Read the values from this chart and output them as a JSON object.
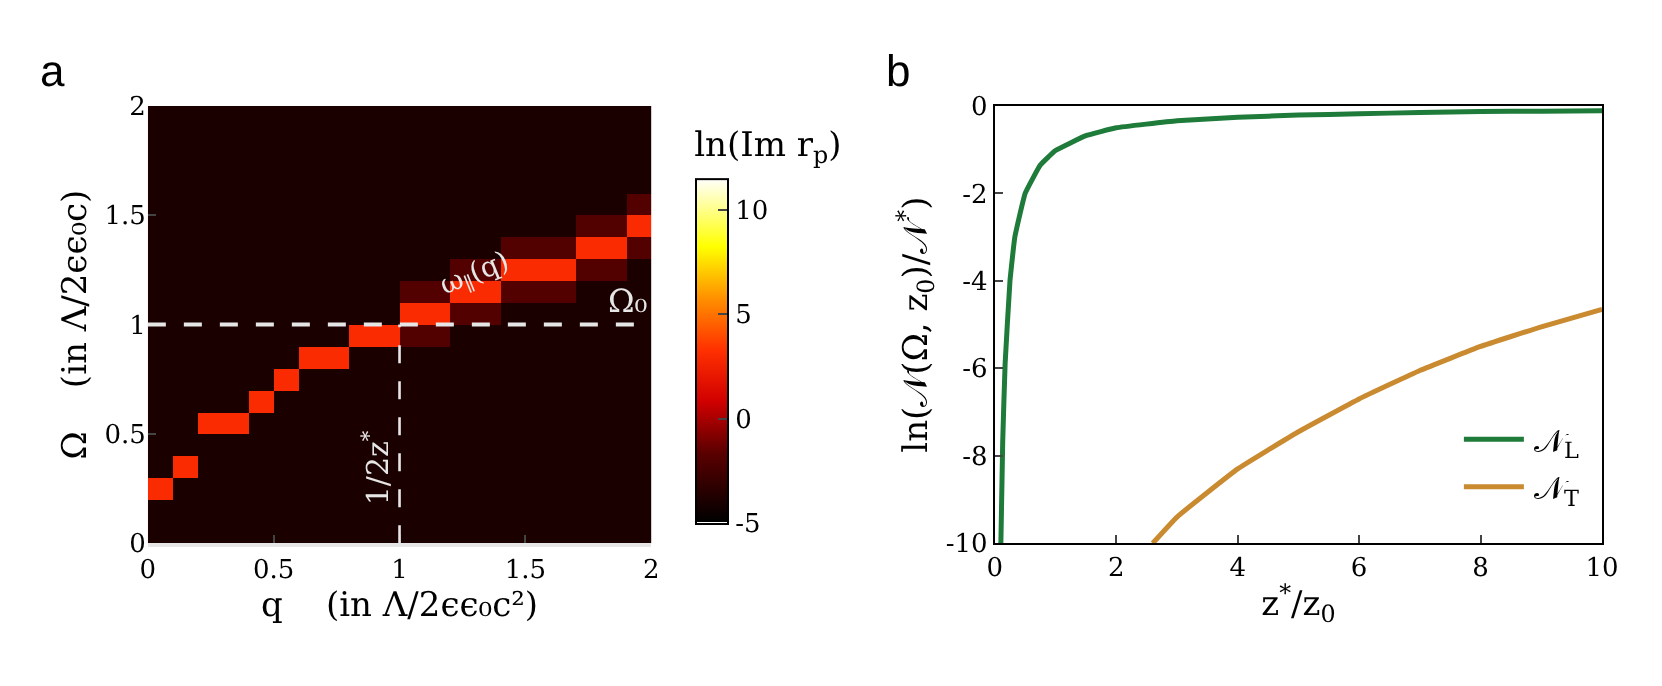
{
  "chart_data": [
    {
      "type": "heatmap",
      "title": "a",
      "xlabel": "q    (in Λ/2ϵϵ₀c²)",
      "ylabel": "Ω    (in Λ/2ϵϵ₀c)",
      "clabel": "ln(Im r$_{p}$)",
      "xlim": [
        0,
        2
      ],
      "ylim": [
        0,
        2
      ],
      "xticks": [
        0,
        0.5,
        1,
        1.5,
        2
      ],
      "yticks": [
        0,
        0.5,
        1,
        1.5,
        2
      ],
      "clim": [
        -5,
        11.5
      ],
      "cticks": [
        -5,
        0,
        5,
        10
      ],
      "cells": [
        [
          -4,
          -4,
          -4,
          -4,
          -4,
          -4,
          -4,
          -4,
          -4,
          -4,
          -4,
          -4,
          -4,
          -4,
          -4,
          -4,
          -4,
          -4,
          -4,
          -4
        ],
        [
          -4,
          -4,
          -4,
          -4,
          -4,
          -4,
          -4,
          -4,
          -4,
          -4,
          -4,
          -4,
          -4,
          -4,
          -4,
          -4,
          -4,
          -4,
          -4,
          -4
        ],
        [
          -4,
          -4,
          -4,
          -4,
          -4,
          -4,
          -4,
          -4,
          -4,
          -4,
          -4,
          -4,
          -4,
          -4,
          -4,
          -4,
          -4,
          -4,
          -4,
          -4
        ],
        [
          -4,
          -4,
          -4,
          -4,
          -4,
          -4,
          -4,
          -4,
          -4,
          -4,
          -4,
          -4,
          -4,
          -4,
          -4,
          -4,
          -4,
          -4,
          -4,
          -4
        ],
        [
          -4,
          -4,
          -4,
          -4,
          -4,
          -4,
          -4,
          -4,
          -4,
          -4,
          -4,
          -4,
          -4,
          -4,
          -4,
          -4,
          -4,
          -4,
          -4,
          -2
        ],
        [
          -4,
          -4,
          -4,
          -4,
          -4,
          -4,
          -4,
          -4,
          -4,
          -4,
          -4,
          -4,
          -4,
          -4,
          -4,
          -4,
          -4,
          -2,
          -2,
          3
        ],
        [
          -4,
          -4,
          -4,
          -4,
          -4,
          -4,
          -4,
          -4,
          -4,
          -4,
          -4,
          -4,
          -4,
          -4,
          -2,
          -2,
          -2,
          3,
          3,
          -2
        ],
        [
          -4,
          -4,
          -4,
          -4,
          -4,
          -4,
          -4,
          -4,
          -4,
          -4,
          -4,
          -4,
          -2,
          -2,
          3,
          3,
          3,
          -2,
          -2,
          -4
        ],
        [
          -4,
          -4,
          -4,
          -4,
          -4,
          -4,
          -4,
          -4,
          -4,
          -4,
          -2,
          -2,
          3,
          3,
          -2,
          -2,
          -2,
          -4,
          -4,
          -4
        ],
        [
          -4,
          -4,
          -4,
          -4,
          -4,
          -4,
          -4,
          -4,
          -4,
          -4,
          3,
          3,
          -2,
          -2,
          -4,
          -4,
          -4,
          -4,
          -4,
          -4
        ],
        [
          -4,
          -4,
          -4,
          -4,
          -4,
          -4,
          -4,
          -4,
          3,
          3,
          -2,
          -2,
          -4,
          -4,
          -4,
          -4,
          -4,
          -4,
          -4,
          -4
        ],
        [
          -4,
          -4,
          -4,
          -4,
          -4,
          -4,
          3,
          3,
          -4,
          -4,
          -4,
          -4,
          -4,
          -4,
          -4,
          -4,
          -4,
          -4,
          -4,
          -4
        ],
        [
          -4,
          -4,
          -4,
          -4,
          -4,
          3,
          -4,
          -4,
          -4,
          -4,
          -4,
          -4,
          -4,
          -4,
          -4,
          -4,
          -4,
          -4,
          -4,
          -4
        ],
        [
          -4,
          -4,
          -4,
          -4,
          3,
          -4,
          -4,
          -4,
          -4,
          -4,
          -4,
          -4,
          -4,
          -4,
          -4,
          -4,
          -4,
          -4,
          -4,
          -4
        ],
        [
          -4,
          -4,
          3,
          3,
          -4,
          -4,
          -4,
          -4,
          -4,
          -4,
          -4,
          -4,
          -4,
          -4,
          -4,
          -4,
          -4,
          -4,
          -4,
          -4
        ],
        [
          -4,
          -4,
          -4,
          -4,
          -4,
          -4,
          -4,
          -4,
          -4,
          -4,
          -4,
          -4,
          -4,
          -4,
          -4,
          -4,
          -4,
          -4,
          -4,
          -4
        ],
        [
          -4,
          3,
          -4,
          -4,
          -4,
          -4,
          -4,
          -4,
          -4,
          -4,
          -4,
          -4,
          -4,
          -4,
          -4,
          -4,
          -4,
          -4,
          -4,
          -4
        ],
        [
          3,
          -4,
          -4,
          -4,
          -4,
          -4,
          -4,
          -4,
          -4,
          -4,
          -4,
          -4,
          -4,
          -4,
          -4,
          -4,
          -4,
          -4,
          -4,
          -4
        ],
        [
          -4,
          -4,
          -4,
          -4,
          -4,
          -4,
          -4,
          -4,
          -4,
          -4,
          -4,
          -4,
          -4,
          -4,
          -4,
          -4,
          -4,
          -4,
          -4,
          -4
        ],
        [
          -4,
          -4,
          -4,
          -4,
          -4,
          -4,
          -4,
          -4,
          -4,
          -4,
          -4,
          -4,
          -4,
          -4,
          -4,
          -4,
          -4,
          -4,
          -4,
          -4
        ]
      ],
      "ref_lines": [
        {
          "axis": "y",
          "value": 1,
          "label": "Ω₀",
          "color": "#e6e6e6",
          "line_style": "dashed"
        },
        {
          "axis": "x",
          "value": 1,
          "label": "1/2z$^{*}$",
          "color": "#e6e6e6",
          "line_style": "dashed"
        }
      ],
      "annotations": [
        "ω$_{∥}$(q)"
      ]
    },
    {
      "type": "line",
      "title": "b",
      "xlabel": "z$^{*}$/z$_{0}$",
      "ylabel": "ln(𝒩(Ω, z$_{0}$)/𝒩$^{*}$)",
      "xlim": [
        0,
        10
      ],
      "ylim": [
        -10,
        0
      ],
      "xticks": [
        0,
        2,
        4,
        6,
        8,
        10
      ],
      "yticks": [
        0,
        -2,
        -4,
        -6,
        -8,
        -10
      ],
      "legend": "bottom right",
      "line_style": "solid",
      "series": [
        {
          "name": "𝒩$_{L}$",
          "color": "#1e7b3a",
          "x": [
            0.1,
            0.13,
            0.17,
            0.25,
            0.33,
            0.5,
            0.75,
            1,
            1.5,
            2,
            3,
            4,
            5,
            6,
            7,
            8,
            9,
            10
          ],
          "values": [
            -10,
            -7.7,
            -5.9,
            -4,
            -3,
            -2,
            -1.35,
            -1.02,
            -0.68,
            -0.5,
            -0.34,
            -0.26,
            -0.21,
            -0.18,
            -0.15,
            -0.13,
            -0.12,
            -0.11
          ]
        },
        {
          "name": "𝒩$_{T}$",
          "color": "#c98a30",
          "x": [
            2.6,
            3,
            4,
            5,
            6,
            7,
            8,
            9,
            10
          ],
          "values": [
            -10,
            -9.4,
            -8.3,
            -7.45,
            -6.7,
            -6.05,
            -5.5,
            -5.05,
            -4.65
          ]
        }
      ]
    }
  ]
}
